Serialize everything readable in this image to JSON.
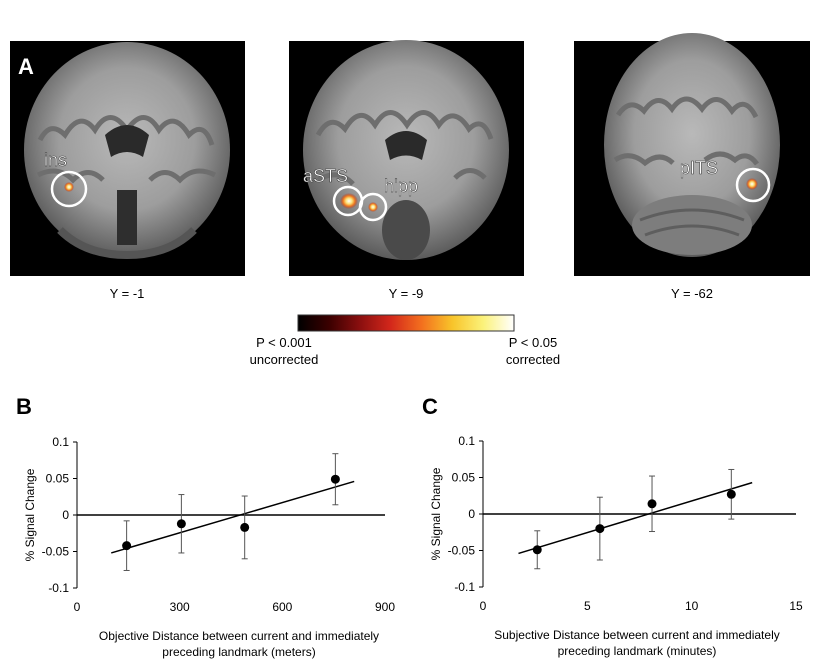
{
  "panel_a": {
    "letter": "A",
    "brains": [
      {
        "caption": "Y = -1",
        "rois": [
          {
            "label": "ins"
          }
        ]
      },
      {
        "caption": "Y = -9",
        "rois": [
          {
            "label": "aSTS"
          },
          {
            "label": "hipp"
          }
        ]
      },
      {
        "caption": "Y = -62",
        "rois": [
          {
            "label": "pITS"
          }
        ]
      }
    ],
    "colorbar": {
      "left_label_line1": "P < 0.001",
      "left_label_line2": "uncorrected",
      "right_label_line1": "P < 0.05",
      "right_label_line2": "corrected",
      "colors": [
        "#000000",
        "#3a0000",
        "#8a0f0f",
        "#d3271b",
        "#f36f1e",
        "#f8c42a",
        "#fbf27a",
        "#ffffff"
      ]
    }
  },
  "chart_data": [
    {
      "panel": "B",
      "type": "scatter",
      "xlabel_line1": "Objective Distance between current and immediately",
      "xlabel_line2": "preceding landmark (meters)",
      "ylabel": "% Signal Change",
      "xlim": [
        0,
        900
      ],
      "ylim": [
        -0.1,
        0.1
      ],
      "xticks": [
        0,
        300,
        600,
        900
      ],
      "yticks": [
        0.1,
        0.05,
        0,
        -0.05,
        -0.1
      ],
      "ytick_labels": [
        "0.1",
        "0.05",
        "0",
        "-0.05",
        "-0.1"
      ],
      "points": [
        {
          "x": 145,
          "y": -0.042,
          "err": 0.034
        },
        {
          "x": 305,
          "y": -0.012,
          "err": 0.04
        },
        {
          "x": 490,
          "y": -0.017,
          "err": 0.043
        },
        {
          "x": 755,
          "y": 0.049,
          "err": 0.035
        }
      ],
      "fit_line": {
        "x": [
          100,
          810
        ],
        "y": [
          -0.052,
          0.046
        ]
      }
    },
    {
      "panel": "C",
      "type": "scatter",
      "xlabel_line1": "Subjective Distance between current and immediately",
      "xlabel_line2": "preceding landmark (minutes)",
      "ylabel": "% Signal Change",
      "xlim": [
        0,
        15
      ],
      "ylim": [
        -0.1,
        0.1
      ],
      "xticks": [
        0,
        5,
        10,
        15
      ],
      "yticks": [
        0.1,
        0.05,
        0,
        -0.05,
        -0.1
      ],
      "ytick_labels": [
        "0.1",
        "0.05",
        "0",
        "-0.05",
        "-0.1"
      ],
      "points": [
        {
          "x": 2.6,
          "y": -0.049,
          "err": 0.026
        },
        {
          "x": 5.6,
          "y": -0.02,
          "err": 0.043
        },
        {
          "x": 8.1,
          "y": 0.014,
          "err": 0.038
        },
        {
          "x": 11.9,
          "y": 0.027,
          "err": 0.034
        }
      ],
      "fit_line": {
        "x": [
          1.7,
          12.9
        ],
        "y": [
          -0.054,
          0.043
        ]
      }
    }
  ]
}
